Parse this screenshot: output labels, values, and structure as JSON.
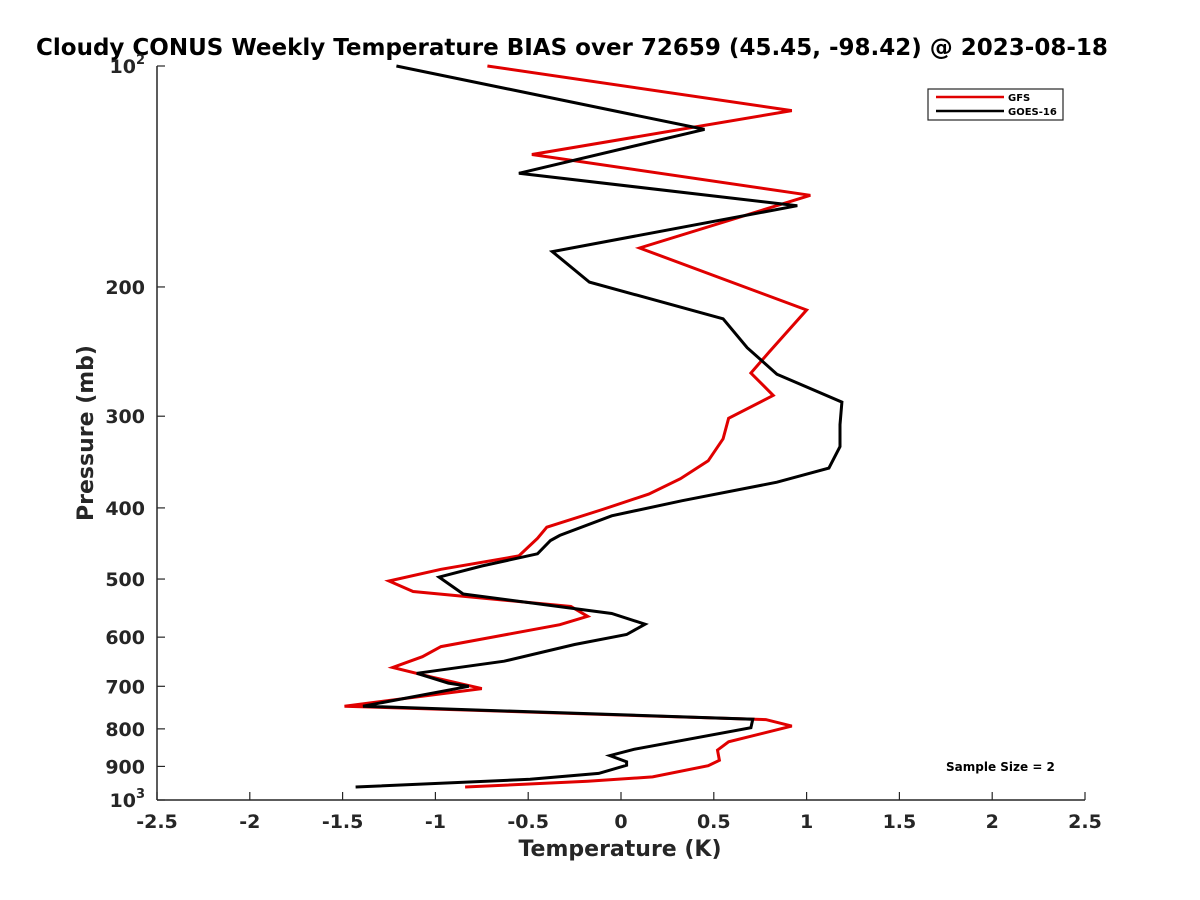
{
  "chart_data": {
    "type": "line",
    "title": "Cloudy CONUS Weekly Temperature BIAS over 72659 (45.45, -98.42) @ 2023-08-18",
    "xlabel": "Temperature (K)",
    "ylabel": "Pressure (mb)",
    "xlim": [
      -2.5,
      2.5
    ],
    "ylim": [
      1000,
      100
    ],
    "y_scale": "log",
    "y_reversed": true,
    "grid": false,
    "legend_position": "top-right",
    "x_ticks": [
      "-2.5",
      "-2",
      "-1.5",
      "-1",
      "-0.5",
      "0",
      "0.5",
      "1",
      "1.5",
      "2",
      "2.5"
    ],
    "x_tick_values": [
      -2.5,
      -2,
      -1.5,
      -1,
      -0.5,
      0,
      0.5,
      1,
      1.5,
      2,
      2.5
    ],
    "y_ticks": [
      {
        "value": 100,
        "base": "10",
        "exp": "2"
      },
      {
        "value": 200,
        "label": "200"
      },
      {
        "value": 300,
        "label": "300"
      },
      {
        "value": 400,
        "label": "400"
      },
      {
        "value": 500,
        "label": "500"
      },
      {
        "value": 600,
        "label": "600"
      },
      {
        "value": 700,
        "label": "700"
      },
      {
        "value": 800,
        "label": "800"
      },
      {
        "value": 900,
        "label": "900"
      },
      {
        "value": 1000,
        "base": "10",
        "exp": "3"
      }
    ],
    "annotation": "Sample Size = 2",
    "series": [
      {
        "name": "GFS",
        "color": "#e00000",
        "points": [
          [
            -0.72,
            100
          ],
          [
            0.92,
            115
          ],
          [
            -0.48,
            132
          ],
          [
            1.02,
            150
          ],
          [
            0.1,
            177
          ],
          [
            1.0,
            215
          ],
          [
            0.8,
            245
          ],
          [
            0.7,
            262
          ],
          [
            0.82,
            281
          ],
          [
            0.58,
            302
          ],
          [
            0.55,
            322
          ],
          [
            0.47,
            345
          ],
          [
            0.32,
            365
          ],
          [
            0.15,
            383
          ],
          [
            -0.1,
            402
          ],
          [
            -0.4,
            425
          ],
          [
            -0.45,
            440
          ],
          [
            -0.55,
            465
          ],
          [
            -0.97,
            485
          ],
          [
            -1.25,
            503
          ],
          [
            -1.12,
            520
          ],
          [
            -0.27,
            545
          ],
          [
            -0.18,
            562
          ],
          [
            -0.33,
            577
          ],
          [
            -0.97,
            618
          ],
          [
            -1.07,
            638
          ],
          [
            -1.23,
            660
          ],
          [
            -1.02,
            680
          ],
          [
            -0.75,
            705
          ],
          [
            -1.49,
            745
          ],
          [
            0.78,
            777
          ],
          [
            0.92,
            793
          ],
          [
            0.58,
            833
          ],
          [
            0.52,
            855
          ],
          [
            0.53,
            883
          ],
          [
            0.47,
            898
          ],
          [
            0.17,
            930
          ],
          [
            -0.18,
            943
          ],
          [
            -0.84,
            960
          ]
        ]
      },
      {
        "name": "GOES-16",
        "color": "#000000",
        "points": [
          [
            -1.21,
            100
          ],
          [
            0.45,
            122
          ],
          [
            -0.55,
            140
          ],
          [
            0.95,
            155
          ],
          [
            -0.37,
            179
          ],
          [
            -0.17,
            197
          ],
          [
            0.55,
            221
          ],
          [
            0.68,
            242
          ],
          [
            0.84,
            263
          ],
          [
            1.19,
            287
          ],
          [
            1.18,
            308
          ],
          [
            1.18,
            330
          ],
          [
            1.12,
            353
          ],
          [
            0.84,
            369
          ],
          [
            0.33,
            391
          ],
          [
            -0.05,
            410
          ],
          [
            -0.33,
            436
          ],
          [
            -0.38,
            443
          ],
          [
            -0.45,
            462
          ],
          [
            -0.75,
            480
          ],
          [
            -0.98,
            497
          ],
          [
            -0.85,
            524
          ],
          [
            -0.05,
            557
          ],
          [
            0.13,
            576
          ],
          [
            0.03,
            595
          ],
          [
            -0.25,
            614
          ],
          [
            -0.63,
            647
          ],
          [
            -1.1,
            672
          ],
          [
            -0.93,
            693
          ],
          [
            -0.82,
            700
          ],
          [
            -1.39,
            745
          ],
          [
            0.71,
            776
          ],
          [
            0.7,
            797
          ],
          [
            0.07,
            853
          ],
          [
            -0.06,
            870
          ],
          [
            0.03,
            887
          ],
          [
            0.03,
            897
          ],
          [
            -0.12,
            920
          ],
          [
            -0.49,
            937
          ],
          [
            -1.43,
            960
          ]
        ]
      }
    ]
  }
}
